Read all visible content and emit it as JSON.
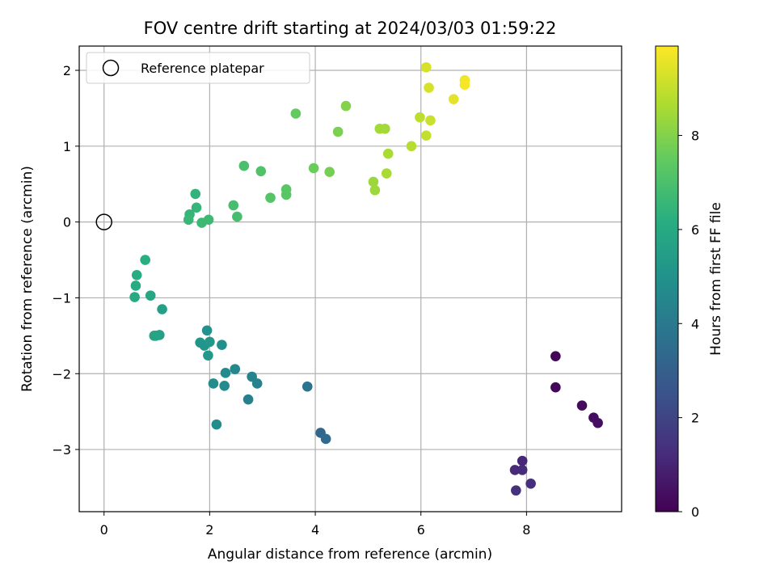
{
  "chart_data": {
    "type": "scatter",
    "title": "FOV centre drift starting at 2024/03/03 01:59:22",
    "xlabel": "Angular distance from reference (arcmin)",
    "ylabel": "Rotation from reference (arcmin)",
    "xlim": [
      -0.47,
      9.8
    ],
    "ylim": [
      -3.82,
      2.32
    ],
    "xticks": [
      0,
      2,
      4,
      6,
      8
    ],
    "yticks": [
      -3,
      -2,
      -1,
      0,
      1,
      2
    ],
    "xtick_labels": [
      "0",
      "2",
      "4",
      "6",
      "8"
    ],
    "ytick_labels": [
      "−3",
      "−2",
      "−1",
      "0",
      "1",
      "2"
    ],
    "grid": true,
    "legend": {
      "placement": "top-left",
      "label": "Reference platepar",
      "marker": "open-circle"
    },
    "reference_point": {
      "x": 0,
      "y": 0
    },
    "colorbar": {
      "label": "Hours from first FF file",
      "colormap": "viridis",
      "range": [
        0,
        9.9
      ],
      "ticks": [
        0,
        2,
        4,
        6,
        8
      ],
      "tick_labels": [
        "0",
        "2",
        "4",
        "6",
        "8"
      ]
    },
    "points": [
      {
        "x": 8.55,
        "y": -1.77,
        "c": 0.15
      },
      {
        "x": 8.55,
        "y": -2.18,
        "c": 0.2
      },
      {
        "x": 9.05,
        "y": -2.42,
        "c": 0.3
      },
      {
        "x": 9.27,
        "y": -2.58,
        "c": 0.35
      },
      {
        "x": 9.35,
        "y": -2.65,
        "c": 0.4
      },
      {
        "x": 7.92,
        "y": -3.15,
        "c": 1.1
      },
      {
        "x": 7.78,
        "y": -3.27,
        "c": 1.15
      },
      {
        "x": 7.92,
        "y": -3.27,
        "c": 1.2
      },
      {
        "x": 8.08,
        "y": -3.45,
        "c": 1.3
      },
      {
        "x": 7.8,
        "y": -3.54,
        "c": 1.4
      },
      {
        "x": 4.1,
        "y": -2.78,
        "c": 3.3
      },
      {
        "x": 4.2,
        "y": -2.86,
        "c": 3.4
      },
      {
        "x": 3.85,
        "y": -2.17,
        "c": 3.8
      },
      {
        "x": 2.73,
        "y": -2.34,
        "c": 4.3
      },
      {
        "x": 2.8,
        "y": -2.04,
        "c": 4.4
      },
      {
        "x": 2.9,
        "y": -2.13,
        "c": 4.4
      },
      {
        "x": 2.48,
        "y": -1.94,
        "c": 4.6
      },
      {
        "x": 2.3,
        "y": -1.99,
        "c": 4.7
      },
      {
        "x": 2.28,
        "y": -2.16,
        "c": 4.7
      },
      {
        "x": 2.07,
        "y": -2.13,
        "c": 4.8
      },
      {
        "x": 2.13,
        "y": -2.67,
        "c": 4.8
      },
      {
        "x": 2.23,
        "y": -1.62,
        "c": 4.9
      },
      {
        "x": 1.95,
        "y": -1.43,
        "c": 5.0
      },
      {
        "x": 1.82,
        "y": -1.59,
        "c": 5.1
      },
      {
        "x": 1.9,
        "y": -1.63,
        "c": 5.1
      },
      {
        "x": 2.0,
        "y": -1.58,
        "c": 5.2
      },
      {
        "x": 1.97,
        "y": -1.76,
        "c": 5.2
      },
      {
        "x": 1.1,
        "y": -1.15,
        "c": 5.6
      },
      {
        "x": 1.05,
        "y": -1.49,
        "c": 5.6
      },
      {
        "x": 0.98,
        "y": -1.5,
        "c": 5.7
      },
      {
        "x": 0.95,
        "y": -1.5,
        "c": 5.7
      },
      {
        "x": 0.88,
        "y": -0.97,
        "c": 5.9
      },
      {
        "x": 0.58,
        "y": -0.99,
        "c": 6.0
      },
      {
        "x": 0.6,
        "y": -0.84,
        "c": 6.0
      },
      {
        "x": 0.62,
        "y": -0.7,
        "c": 6.1
      },
      {
        "x": 0.78,
        "y": -0.5,
        "c": 6.2
      },
      {
        "x": 1.73,
        "y": 0.37,
        "c": 6.4
      },
      {
        "x": 1.75,
        "y": 0.19,
        "c": 6.5
      },
      {
        "x": 1.62,
        "y": 0.1,
        "c": 6.5
      },
      {
        "x": 1.6,
        "y": 0.03,
        "c": 6.6
      },
      {
        "x": 1.85,
        "y": -0.01,
        "c": 6.7
      },
      {
        "x": 1.98,
        "y": 0.03,
        "c": 6.7
      },
      {
        "x": 2.45,
        "y": 0.22,
        "c": 6.9
      },
      {
        "x": 2.52,
        "y": 0.07,
        "c": 6.9
      },
      {
        "x": 2.65,
        "y": 0.74,
        "c": 7.0
      },
      {
        "x": 2.97,
        "y": 0.67,
        "c": 7.1
      },
      {
        "x": 3.15,
        "y": 0.32,
        "c": 7.2
      },
      {
        "x": 3.45,
        "y": 0.36,
        "c": 7.3
      },
      {
        "x": 3.45,
        "y": 0.43,
        "c": 7.3
      },
      {
        "x": 3.63,
        "y": 1.43,
        "c": 7.5
      },
      {
        "x": 3.97,
        "y": 0.71,
        "c": 7.6
      },
      {
        "x": 4.27,
        "y": 0.66,
        "c": 7.8
      },
      {
        "x": 4.43,
        "y": 1.19,
        "c": 7.9
      },
      {
        "x": 4.58,
        "y": 1.53,
        "c": 8.0
      },
      {
        "x": 5.1,
        "y": 0.53,
        "c": 8.4
      },
      {
        "x": 5.13,
        "y": 0.42,
        "c": 8.4
      },
      {
        "x": 5.22,
        "y": 1.23,
        "c": 8.5
      },
      {
        "x": 5.32,
        "y": 1.23,
        "c": 8.5
      },
      {
        "x": 5.35,
        "y": 0.64,
        "c": 8.6
      },
      {
        "x": 5.38,
        "y": 0.9,
        "c": 8.6
      },
      {
        "x": 5.82,
        "y": 1.0,
        "c": 8.8
      },
      {
        "x": 5.98,
        "y": 1.38,
        "c": 8.9
      },
      {
        "x": 6.1,
        "y": 1.14,
        "c": 9.0
      },
      {
        "x": 6.18,
        "y": 1.34,
        "c": 9.1
      },
      {
        "x": 6.1,
        "y": 2.04,
        "c": 9.3
      },
      {
        "x": 6.15,
        "y": 1.77,
        "c": 9.3
      },
      {
        "x": 6.62,
        "y": 1.62,
        "c": 9.5
      },
      {
        "x": 6.83,
        "y": 1.87,
        "c": 9.7
      },
      {
        "x": 6.83,
        "y": 1.81,
        "c": 9.8
      }
    ]
  }
}
